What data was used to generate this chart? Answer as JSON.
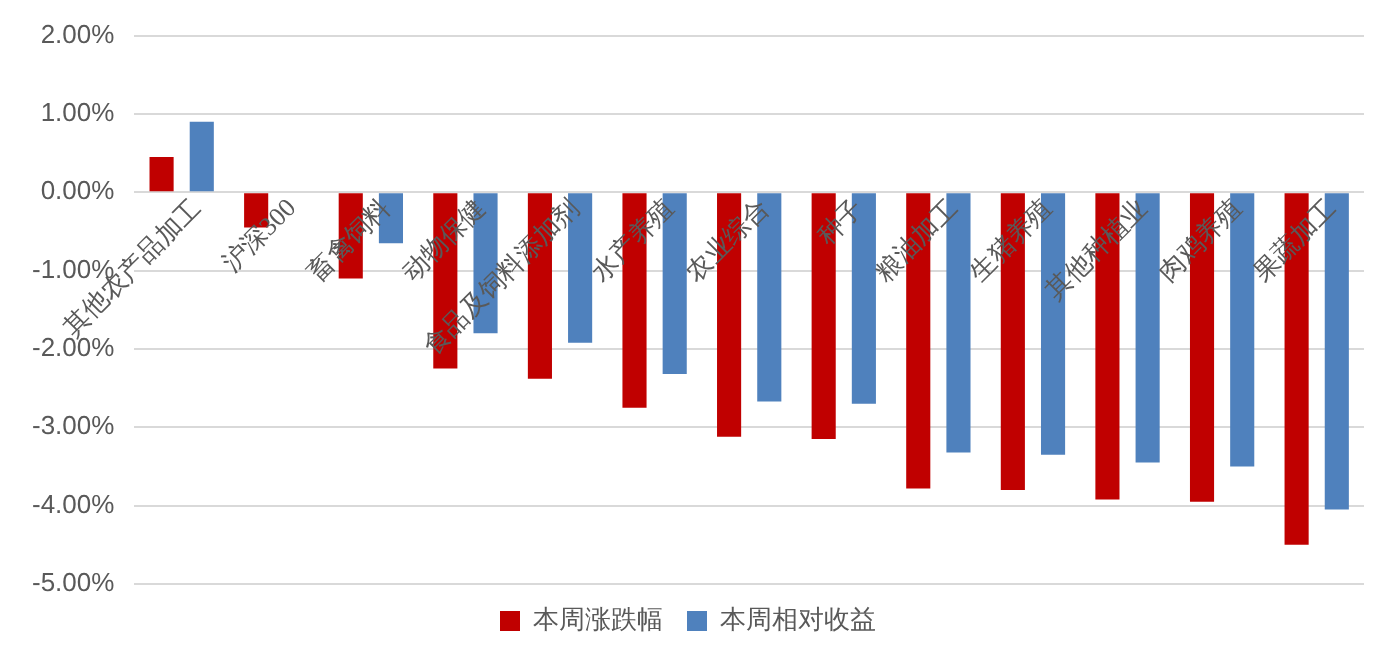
{
  "chart_data": {
    "type": "bar",
    "categories": [
      "其他农产品加工",
      "沪深300",
      "畜禽饲料",
      "动物保健",
      "食品及饲料添加剂",
      "水产养殖",
      "农业综合",
      "种子",
      "粮油加工",
      "生猪养殖",
      "其他种植业",
      "肉鸡养殖",
      "果蔬加工"
    ],
    "series": [
      {
        "name": "本周涨跌幅",
        "color": "#c00000",
        "values": [
          0.45,
          -0.45,
          -1.1,
          -2.25,
          -2.38,
          -2.75,
          -3.12,
          -3.15,
          -3.78,
          -3.8,
          -3.92,
          -3.95,
          -4.5
        ]
      },
      {
        "name": "本周相对收益",
        "color": "#4f81bd",
        "values": [
          0.9,
          null,
          -0.65,
          -1.8,
          -1.92,
          -2.32,
          -2.67,
          -2.7,
          -3.32,
          -3.35,
          -3.45,
          -3.5,
          -4.05
        ]
      }
    ],
    "ylim": [
      -5,
      2
    ],
    "yticks": [
      {
        "value": -5,
        "label": "-5.00%"
      },
      {
        "value": -4,
        "label": "-4.00%"
      },
      {
        "value": -3,
        "label": "-3.00%"
      },
      {
        "value": -2,
        "label": "-2.00%"
      },
      {
        "value": -1,
        "label": "-1.00%"
      },
      {
        "value": 0,
        "label": "0.00%"
      },
      {
        "value": 1,
        "label": "1.00%"
      },
      {
        "value": 2,
        "label": "2.00%"
      }
    ],
    "grid": "y",
    "legend": "bottom"
  }
}
